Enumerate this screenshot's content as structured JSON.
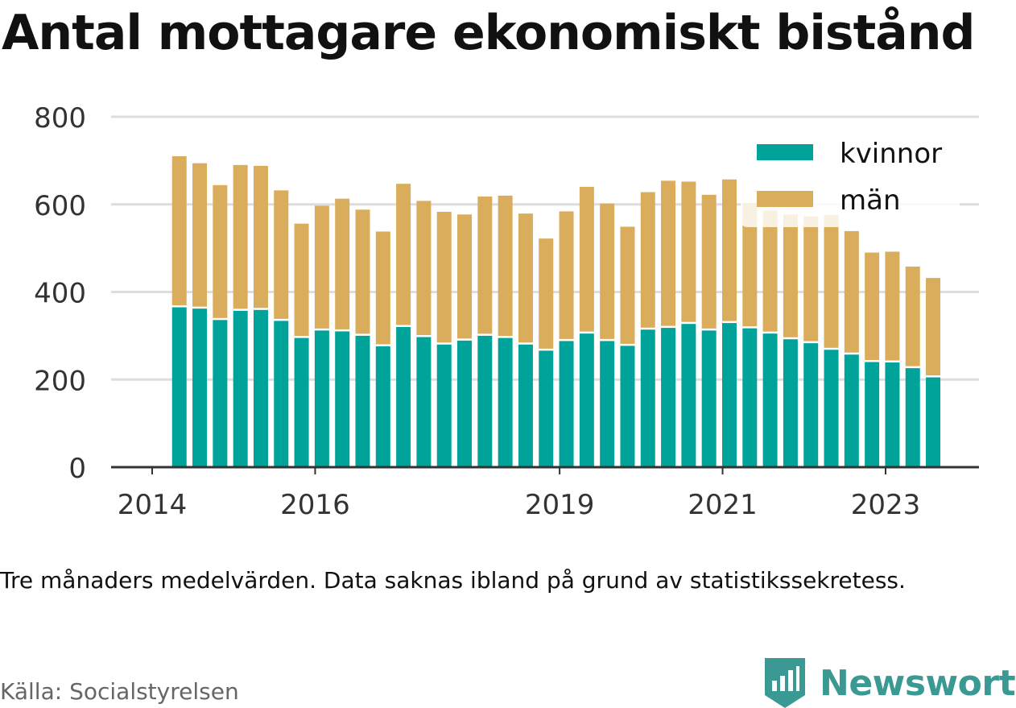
{
  "title": "Antal mottagare ekonomiskt bistånd",
  "note": "Tre månaders medelvärden. Data saknas ibland på grund av statistikssekretess.",
  "source": "Källa: Socialstyrelsen",
  "brand": "Newsworthy",
  "colors": {
    "kvinnor": "#00a39a",
    "man": "#d9ad5c",
    "grid": "#dddddd",
    "axis": "#333333",
    "brand": "#3a9a93"
  },
  "chart_data": {
    "type": "bar",
    "stacked": true,
    "title": "Antal mottagare ekonomiskt bistånd",
    "xlabel": "",
    "ylabel": "",
    "ylim": [
      0,
      800
    ],
    "yticks": [
      0,
      200,
      400,
      600,
      800
    ],
    "xticks": [
      "2014",
      "2016",
      "2019",
      "2021",
      "2023"
    ],
    "grid": true,
    "legend": "top-right",
    "categories": [
      "2014-05",
      "2014-08",
      "2014-11",
      "2015-02",
      "2015-05",
      "2015-08",
      "2015-11",
      "2016-02",
      "2016-05",
      "2016-08",
      "2016-11",
      "2017-02",
      "2017-05",
      "2017-08",
      "2017-11",
      "2018-02",
      "2018-05",
      "2018-08",
      "2018-11",
      "2019-02",
      "2019-05",
      "2019-08",
      "2019-11",
      "2020-02",
      "2020-05",
      "2020-08",
      "2020-11",
      "2021-02",
      "2021-05",
      "2021-08",
      "2021-11",
      "2022-02",
      "2022-05",
      "2022-08",
      "2022-11",
      "2023-02",
      "2023-05",
      "2023-08"
    ],
    "series": [
      {
        "name": "kvinnor",
        "values": [
          365,
          362,
          336,
          357,
          359,
          334,
          295,
          312,
          310,
          300,
          276,
          320,
          297,
          280,
          289,
          300,
          295,
          280,
          266,
          288,
          305,
          288,
          277,
          314,
          318,
          327,
          312,
          329,
          317,
          305,
          292,
          283,
          268,
          257,
          240,
          239,
          226,
          205
        ]
      },
      {
        "name": "män",
        "values": [
          345,
          332,
          308,
          333,
          329,
          298,
          261,
          285,
          303,
          288,
          262,
          327,
          311,
          303,
          288,
          318,
          325,
          299,
          256,
          296,
          335,
          314,
          272,
          314,
          336,
          325,
          310,
          328,
          286,
          281,
          285,
          290,
          308,
          282,
          250,
          253,
          232,
          227
        ]
      }
    ]
  }
}
